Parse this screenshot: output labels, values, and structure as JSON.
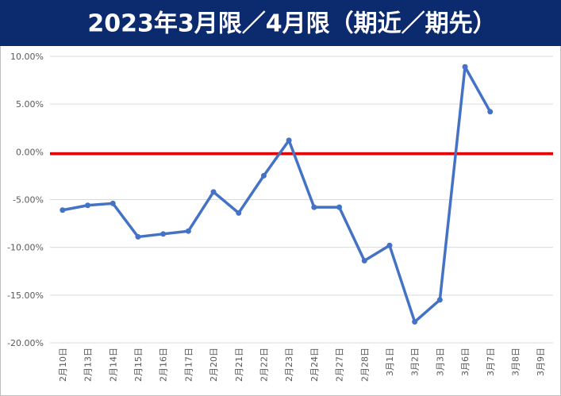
{
  "chart_data": {
    "type": "line",
    "title": "2023年3月限／4月限（期近／期先）",
    "categories": [
      "2月10日",
      "2月13日",
      "2月14日",
      "2月15日",
      "2月16日",
      "2月17日",
      "2月20日",
      "2月21日",
      "2月22日",
      "2月23日",
      "2月24日",
      "2月27日",
      "2月28日",
      "3月1日",
      "3月2日",
      "3月3日",
      "3月6日",
      "3月7日",
      "3月8日",
      "3月9日"
    ],
    "series": [
      {
        "color": "#4472c4",
        "values": [
          -6.1,
          -5.6,
          -5.4,
          -8.9,
          -8.6,
          -8.3,
          -4.2,
          -6.4,
          -2.5,
          1.2,
          -5.8,
          -5.8,
          -11.4,
          -9.8,
          -17.8,
          -15.5,
          8.9,
          4.2,
          null,
          null
        ]
      }
    ],
    "reference_line": {
      "value": -0.2,
      "color": "#e00000"
    },
    "ylim": [
      -20,
      10
    ],
    "yticks": [
      {
        "value": -20,
        "label": "-20.00%"
      },
      {
        "value": -15,
        "label": "-15.00%"
      },
      {
        "value": -10,
        "label": "-10.00%"
      },
      {
        "value": -5,
        "label": "-5.00%"
      },
      {
        "value": 0,
        "label": "0.00%"
      },
      {
        "value": 5,
        "label": "5.00%"
      },
      {
        "value": 10,
        "label": "10.00%"
      }
    ],
    "grid": true
  }
}
